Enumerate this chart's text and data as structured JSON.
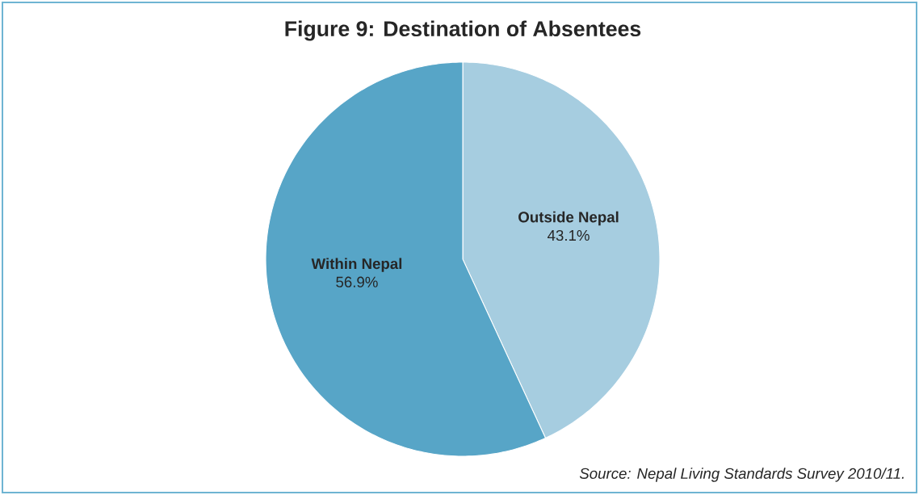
{
  "chart_data": {
    "type": "pie",
    "title": "Figure 9: Destination of Absentees",
    "categories": [
      "Outside Nepal",
      "Within Nepal"
    ],
    "values": [
      43.1,
      56.9
    ],
    "value_labels": [
      "43.1%",
      "56.9%"
    ],
    "colors": [
      "#a6cde0",
      "#57a5c7"
    ],
    "annotations": [
      "Source: Nepal Living Standards Survey 2010/11."
    ]
  }
}
